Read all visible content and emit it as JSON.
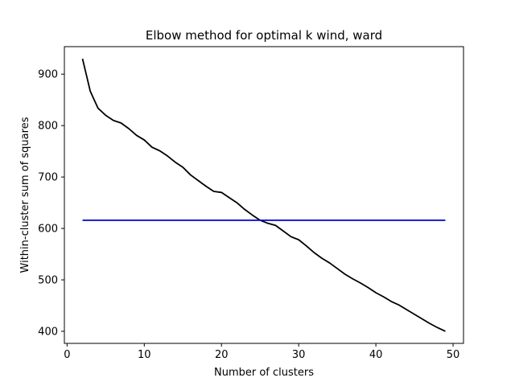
{
  "chart_data": {
    "type": "line",
    "title": "Elbow method for optimal k wind, ward",
    "xlabel": "Number of clusters",
    "ylabel": "Within-cluster sum of squares",
    "xlim": [
      -0.35,
      51.35
    ],
    "ylim": [
      376.5,
      953.5
    ],
    "xticks": [
      0,
      10,
      20,
      30,
      40,
      50
    ],
    "yticks": [
      400,
      500,
      600,
      700,
      800,
      900
    ],
    "grid": false,
    "colors": {
      "elbow": "#000000",
      "threshold": "#0000cc"
    },
    "series": [
      {
        "x": [
          2,
          3,
          4,
          5,
          6,
          7,
          8,
          9,
          10,
          11,
          12,
          13,
          14,
          15,
          16,
          17,
          18,
          19,
          20,
          21,
          22,
          23,
          24,
          25,
          26,
          27,
          28,
          29,
          30,
          31,
          32,
          33,
          34,
          35,
          36,
          37,
          38,
          39,
          40,
          41,
          42,
          43,
          44,
          45,
          46,
          47,
          48,
          49
        ],
        "values": [
          930,
          867,
          834,
          820,
          810,
          805,
          794,
          781,
          772,
          758,
          751,
          741,
          729,
          719,
          704,
          693,
          682,
          672,
          670,
          660,
          650,
          637,
          626,
          616,
          610,
          606,
          595,
          584,
          578,
          566,
          553,
          542,
          533,
          522,
          511,
          502,
          494,
          485,
          475,
          467,
          458,
          451,
          442,
          433,
          424,
          415,
          407,
          400
        ]
      },
      {
        "x": [
          2,
          49
        ],
        "values": [
          616,
          616
        ]
      }
    ]
  }
}
